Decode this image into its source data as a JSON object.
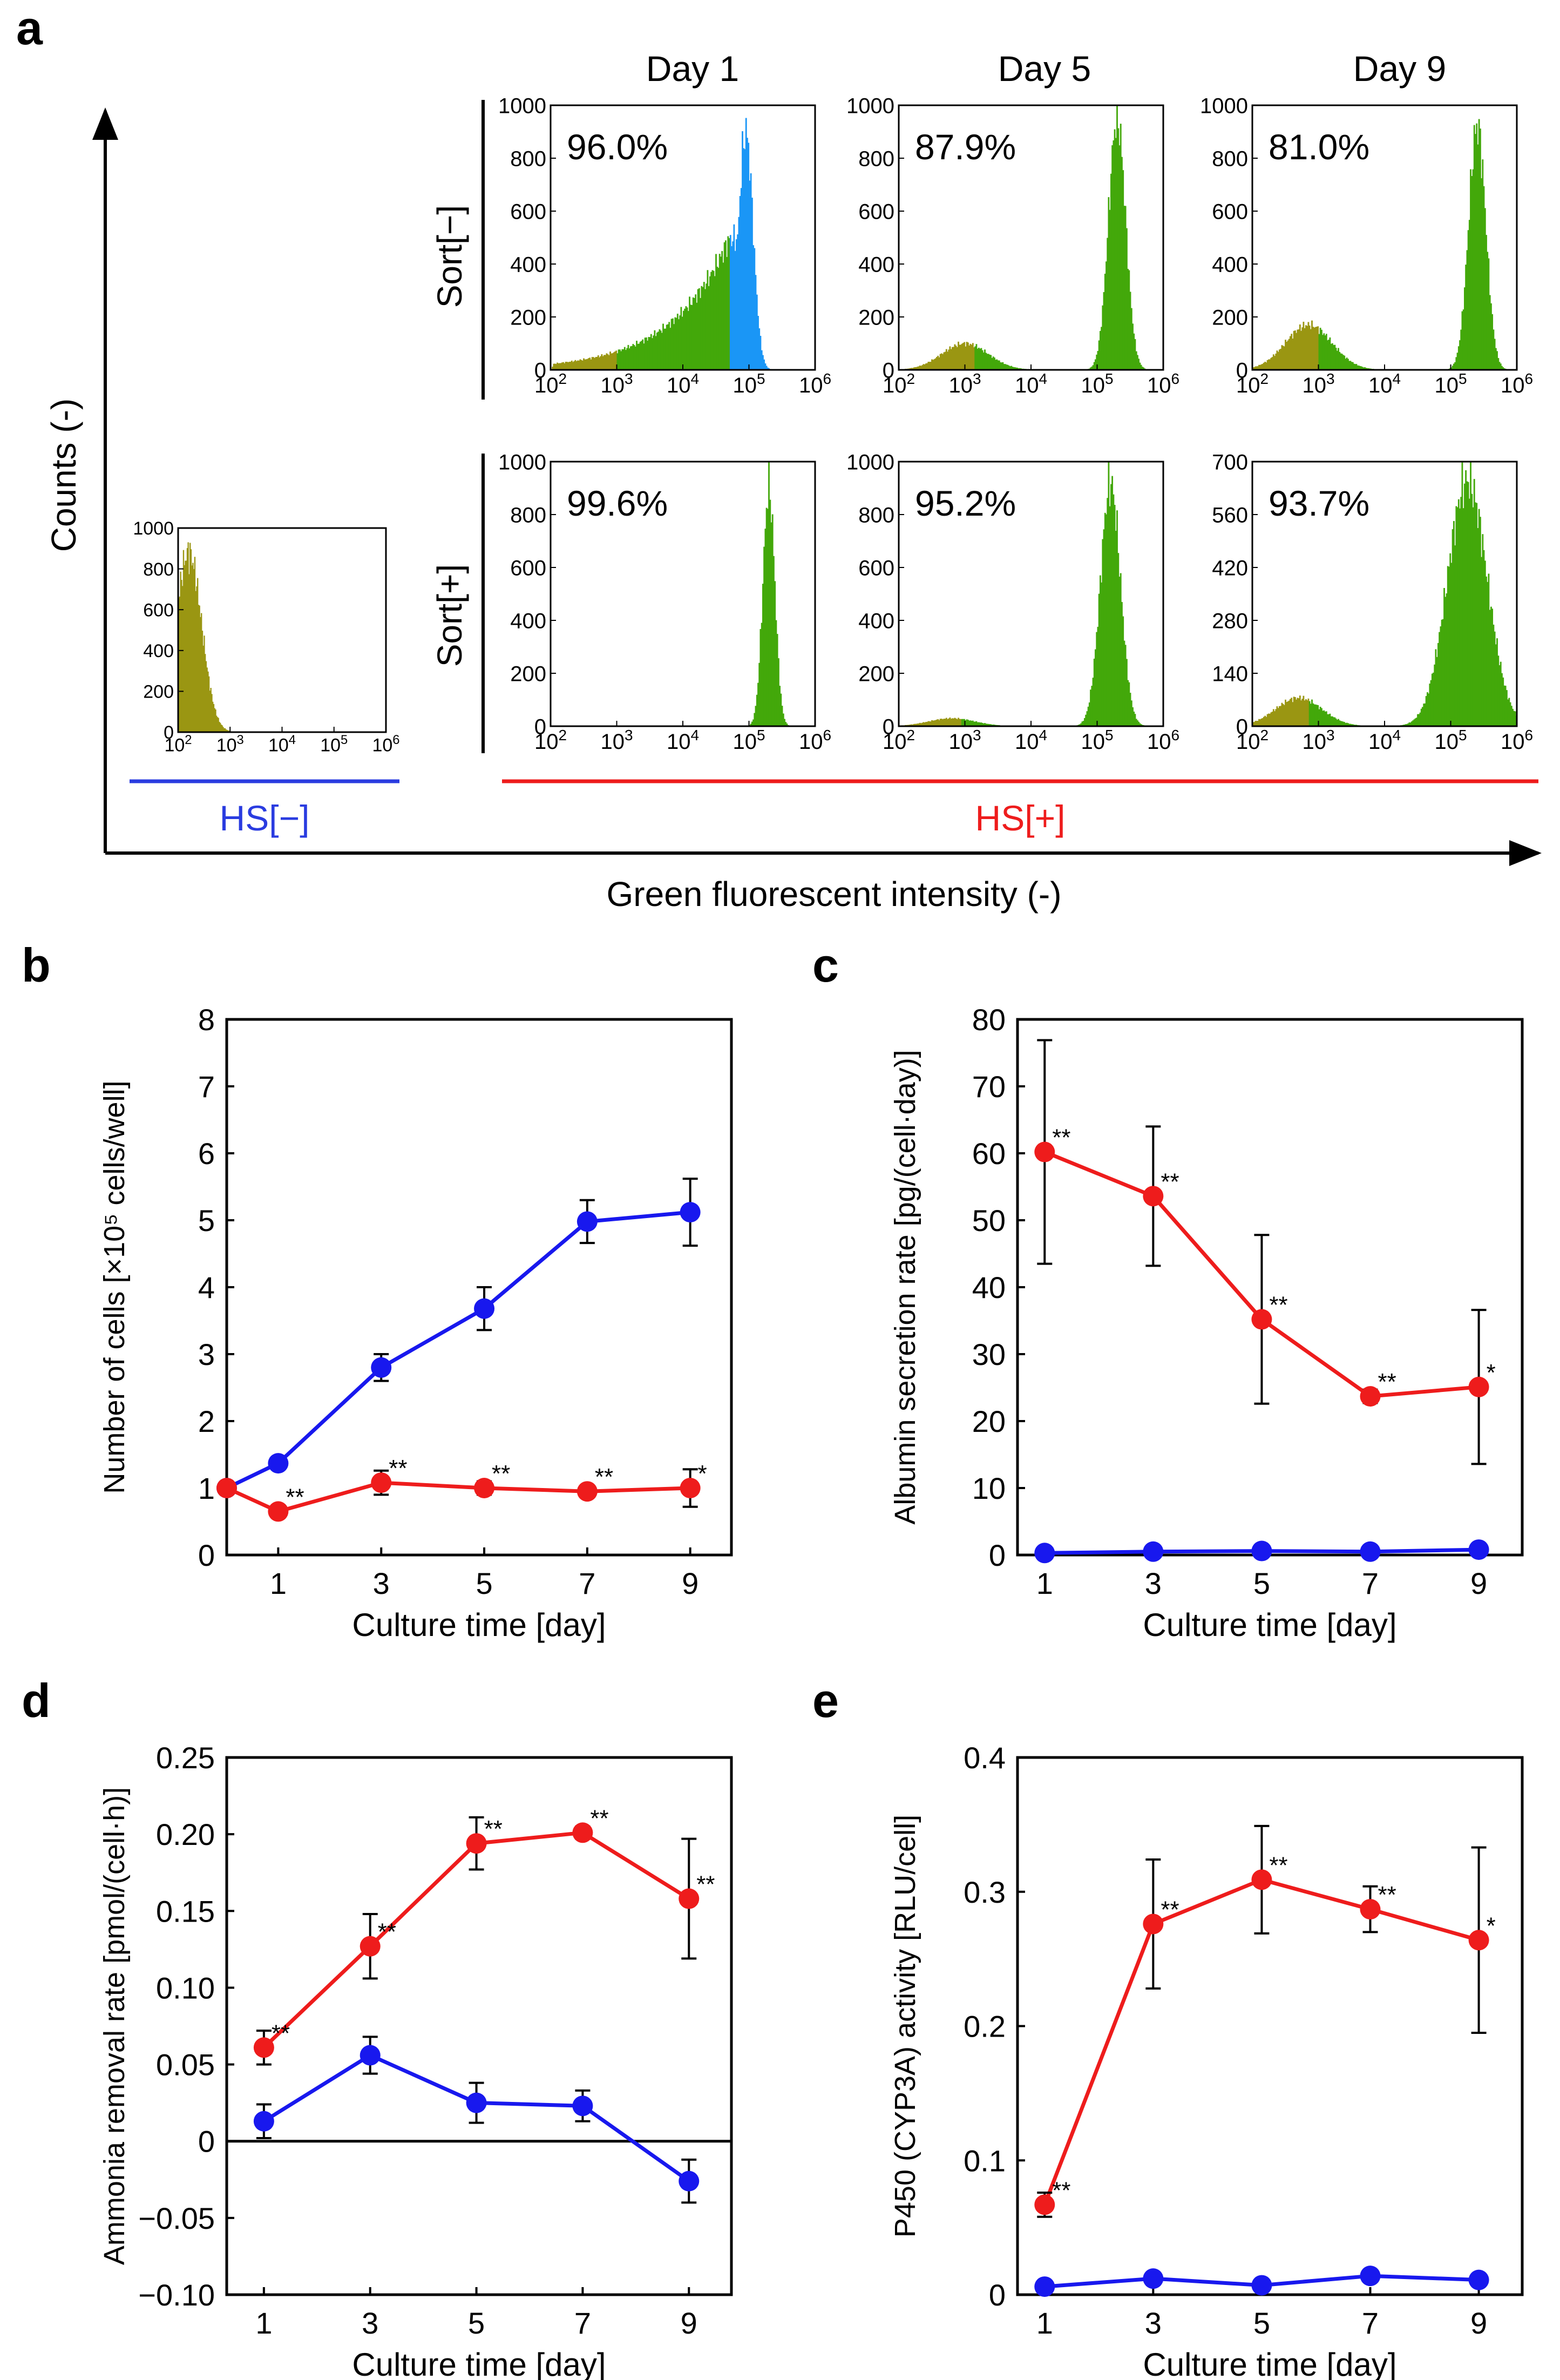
{
  "panels": {
    "a": "a",
    "b": "b",
    "c": "c",
    "d": "d",
    "e": "e"
  },
  "colors": {
    "red": "#ee1c1c",
    "blue": "#1818ee",
    "green": "#43a80a",
    "olive": "#9a9612",
    "cyan": "#1a96f6",
    "hs_minus_line": "#2a3ce0",
    "hs_plus_line": "#ee1c1c",
    "axis": "#000000"
  },
  "histograms": {
    "y_axis_label": "Counts (-)",
    "x_axis_label": "Green fluorescent intensity (-)",
    "columns": [
      "Day 1",
      "Day 5",
      "Day 9"
    ],
    "rows": [
      "Sort[−]",
      "Sort[+]"
    ],
    "group_labels": {
      "hs_minus": "HS[−]",
      "hs_plus": "HS[+]"
    },
    "x_tick_base": "10",
    "x_tick_exponents": [
      "2",
      "3",
      "4",
      "5",
      "6"
    ]
  },
  "chart_data": [
    {
      "panel": "a",
      "type": "histogram",
      "title": "HS[−]",
      "x_scale": "log10",
      "xlim": [
        100,
        1000000
      ],
      "ylim": [
        0,
        1000
      ],
      "yticks": [
        "0",
        "200",
        "400",
        "600",
        "800",
        "1000"
      ],
      "peak_log10": 2.2,
      "peak_count": 880,
      "width": 0.25,
      "percent": ""
    },
    {
      "panel": "a",
      "type": "histogram",
      "row": "Sort[−]",
      "column": "Day 1",
      "x_scale": "log10",
      "xlim": [
        100,
        1000000
      ],
      "ylim": [
        0,
        1000
      ],
      "yticks": [
        "0",
        "200",
        "400",
        "600",
        "800",
        "1000"
      ],
      "percent": "96.0%",
      "gate_log10": 4.7,
      "peak_log10": 4.95,
      "peak_count": 900,
      "tail": true
    },
    {
      "panel": "a",
      "type": "histogram",
      "row": "Sort[−]",
      "column": "Day 5",
      "x_scale": "log10",
      "xlim": [
        100,
        1000000
      ],
      "ylim": [
        0,
        1000
      ],
      "yticks": [
        "0",
        "200",
        "400",
        "600",
        "800",
        "1000"
      ],
      "percent": "87.9%",
      "peak_log10": 5.3,
      "peak_count": 950,
      "width": 0.13,
      "minor_log10": 3.0,
      "minor_count": 100
    },
    {
      "panel": "a",
      "type": "histogram",
      "row": "Sort[−]",
      "column": "Day 9",
      "x_scale": "log10",
      "xlim": [
        100,
        1000000
      ],
      "ylim": [
        0,
        1000
      ],
      "yticks": [
        "0",
        "200",
        "400",
        "600",
        "800",
        "1000"
      ],
      "percent": "81.0%",
      "peak_log10": 5.4,
      "peak_count": 920,
      "width": 0.13,
      "minor_log10": 2.85,
      "minor_count": 170
    },
    {
      "panel": "a",
      "type": "histogram",
      "row": "Sort[+]",
      "column": "Day 1",
      "x_scale": "log10",
      "xlim": [
        100,
        1000000
      ],
      "ylim": [
        0,
        1000
      ],
      "yticks": [
        "0",
        "200",
        "400",
        "600",
        "800",
        "1000"
      ],
      "percent": "99.6%",
      "peak_log10": 5.3,
      "peak_count": 900,
      "width": 0.09,
      "minor_log10": 0,
      "minor_count": 0
    },
    {
      "panel": "a",
      "type": "histogram",
      "row": "Sort[+]",
      "column": "Day 5",
      "x_scale": "log10",
      "xlim": [
        100,
        1000000
      ],
      "ylim": [
        0,
        1000
      ],
      "yticks": [
        "0",
        "200",
        "400",
        "600",
        "800",
        "1000"
      ],
      "percent": "95.2%",
      "peak_log10": 5.2,
      "peak_count": 920,
      "width": 0.15,
      "minor_log10": 2.8,
      "minor_count": 30
    },
    {
      "panel": "a",
      "type": "histogram",
      "row": "Sort[+]",
      "column": "Day 9",
      "x_scale": "log10",
      "xlim": [
        100,
        1000000
      ],
      "ylim": [
        0,
        700
      ],
      "yticks": [
        "0",
        "140",
        "280",
        "420",
        "560",
        "700"
      ],
      "percent": "93.7%",
      "peak_log10": 5.25,
      "peak_count": 650,
      "width": 0.3,
      "minor_log10": 2.7,
      "minor_count": 75
    },
    {
      "panel": "b",
      "type": "line",
      "xlabel": "Culture time [day]",
      "ylabel": "Number of cells [×10⁵ cells/well]",
      "xlim": [
        0,
        9.8
      ],
      "ylim": [
        0,
        8
      ],
      "xticks": [
        "1",
        "3",
        "5",
        "7",
        "9"
      ],
      "yticks": [
        "0",
        "1",
        "2",
        "3",
        "4",
        "5",
        "6",
        "7",
        "8"
      ],
      "zero_line": false,
      "series": [
        {
          "name": "HS[−]",
          "color": "blue",
          "x": [
            0,
            1,
            3,
            5,
            7,
            9
          ],
          "values": [
            1.0,
            1.37,
            2.8,
            3.68,
            4.98,
            5.12
          ],
          "errors": [
            0,
            0.07,
            0.2,
            0.32,
            0.32,
            0.5
          ],
          "marks": [
            "",
            "",
            "",
            "",
            "",
            ""
          ]
        },
        {
          "name": "HS[+]",
          "color": "red",
          "x": [
            0,
            1,
            3,
            5,
            7,
            9
          ],
          "values": [
            1.0,
            0.65,
            1.08,
            1.0,
            0.95,
            1.0
          ],
          "errors": [
            0,
            0.06,
            0.18,
            0.1,
            0.06,
            0.28
          ],
          "marks": [
            "",
            "**",
            "**",
            "**",
            "**",
            "*"
          ]
        }
      ]
    },
    {
      "panel": "c",
      "type": "line",
      "xlabel": "Culture time [day]",
      "ylabel": "Albumin secretion rate [pg/(cell·day)]",
      "xlim": [
        0.5,
        9.8
      ],
      "ylim": [
        0,
        80
      ],
      "xticks": [
        "1",
        "3",
        "5",
        "7",
        "9"
      ],
      "yticks": [
        "0",
        "10",
        "20",
        "30",
        "40",
        "50",
        "60",
        "70",
        "80"
      ],
      "zero_line": false,
      "series": [
        {
          "name": "HS[−]",
          "color": "blue",
          "x": [
            1,
            3,
            5,
            7,
            9
          ],
          "values": [
            0.3,
            0.5,
            0.6,
            0.5,
            0.8
          ],
          "errors": [
            0,
            0,
            0,
            0,
            0
          ],
          "marks": [
            "",
            "",
            "",
            "",
            ""
          ]
        },
        {
          "name": "HS[+]",
          "color": "red",
          "x": [
            1,
            3,
            5,
            7,
            9
          ],
          "values": [
            60.2,
            53.6,
            35.2,
            23.7,
            25.1
          ],
          "errors": [
            16.7,
            10.4,
            12.6,
            1.0,
            11.5
          ],
          "marks": [
            "**",
            "**",
            "**",
            "**",
            "*"
          ]
        }
      ]
    },
    {
      "panel": "d",
      "type": "line",
      "xlabel": "Culture time [day]",
      "ylabel": "Ammonia removal rate [pmol/(cell·h)]",
      "xlim": [
        0.3,
        9.8
      ],
      "ylim": [
        -0.1,
        0.25
      ],
      "xticks": [
        "1",
        "3",
        "5",
        "7",
        "9"
      ],
      "yticks": [
        "−0.10",
        "−0.05",
        "0",
        "0.05",
        "0.10",
        "0.15",
        "0.20",
        "0.25"
      ],
      "zero_line": true,
      "series": [
        {
          "name": "HS[−]",
          "color": "blue",
          "x": [
            1,
            3,
            5,
            7,
            9
          ],
          "values": [
            0.013,
            0.056,
            0.025,
            0.023,
            -0.026
          ],
          "errors": [
            0.011,
            0.012,
            0.013,
            0.01,
            0.014
          ],
          "marks": [
            "",
            "",
            "",
            "",
            ""
          ]
        },
        {
          "name": "HS[+]",
          "color": "red",
          "x": [
            1,
            3,
            5,
            7,
            9
          ],
          "values": [
            0.061,
            0.127,
            0.194,
            0.201,
            0.158
          ],
          "errors": [
            0.011,
            0.021,
            0.017,
            0.004,
            0.039
          ],
          "marks": [
            "**",
            "**",
            "**",
            "**",
            "**"
          ]
        }
      ]
    },
    {
      "panel": "e",
      "type": "line",
      "xlabel": "Culture time [day]",
      "ylabel": "P450 (CYP3A) activity [RLU/cell]",
      "xlim": [
        0.5,
        9.8
      ],
      "ylim": [
        0,
        0.4
      ],
      "xticks": [
        "1",
        "3",
        "5",
        "7",
        "9"
      ],
      "yticks": [
        "0",
        "0.1",
        "0.2",
        "0.3",
        "0.4"
      ],
      "zero_line": false,
      "series": [
        {
          "name": "HS[−]",
          "color": "blue",
          "x": [
            1,
            3,
            5,
            7,
            9
          ],
          "values": [
            0.006,
            0.012,
            0.007,
            0.014,
            0.011
          ],
          "errors": [
            0,
            0,
            0,
            0,
            0
          ],
          "marks": [
            "",
            "",
            "",
            "",
            ""
          ]
        },
        {
          "name": "HS[+]",
          "color": "red",
          "x": [
            1,
            3,
            5,
            7,
            9
          ],
          "values": [
            0.067,
            0.276,
            0.309,
            0.287,
            0.264
          ],
          "errors": [
            0.009,
            0.048,
            0.04,
            0.017,
            0.069
          ],
          "marks": [
            "**",
            "**",
            "**",
            "**",
            "*"
          ]
        }
      ]
    }
  ]
}
